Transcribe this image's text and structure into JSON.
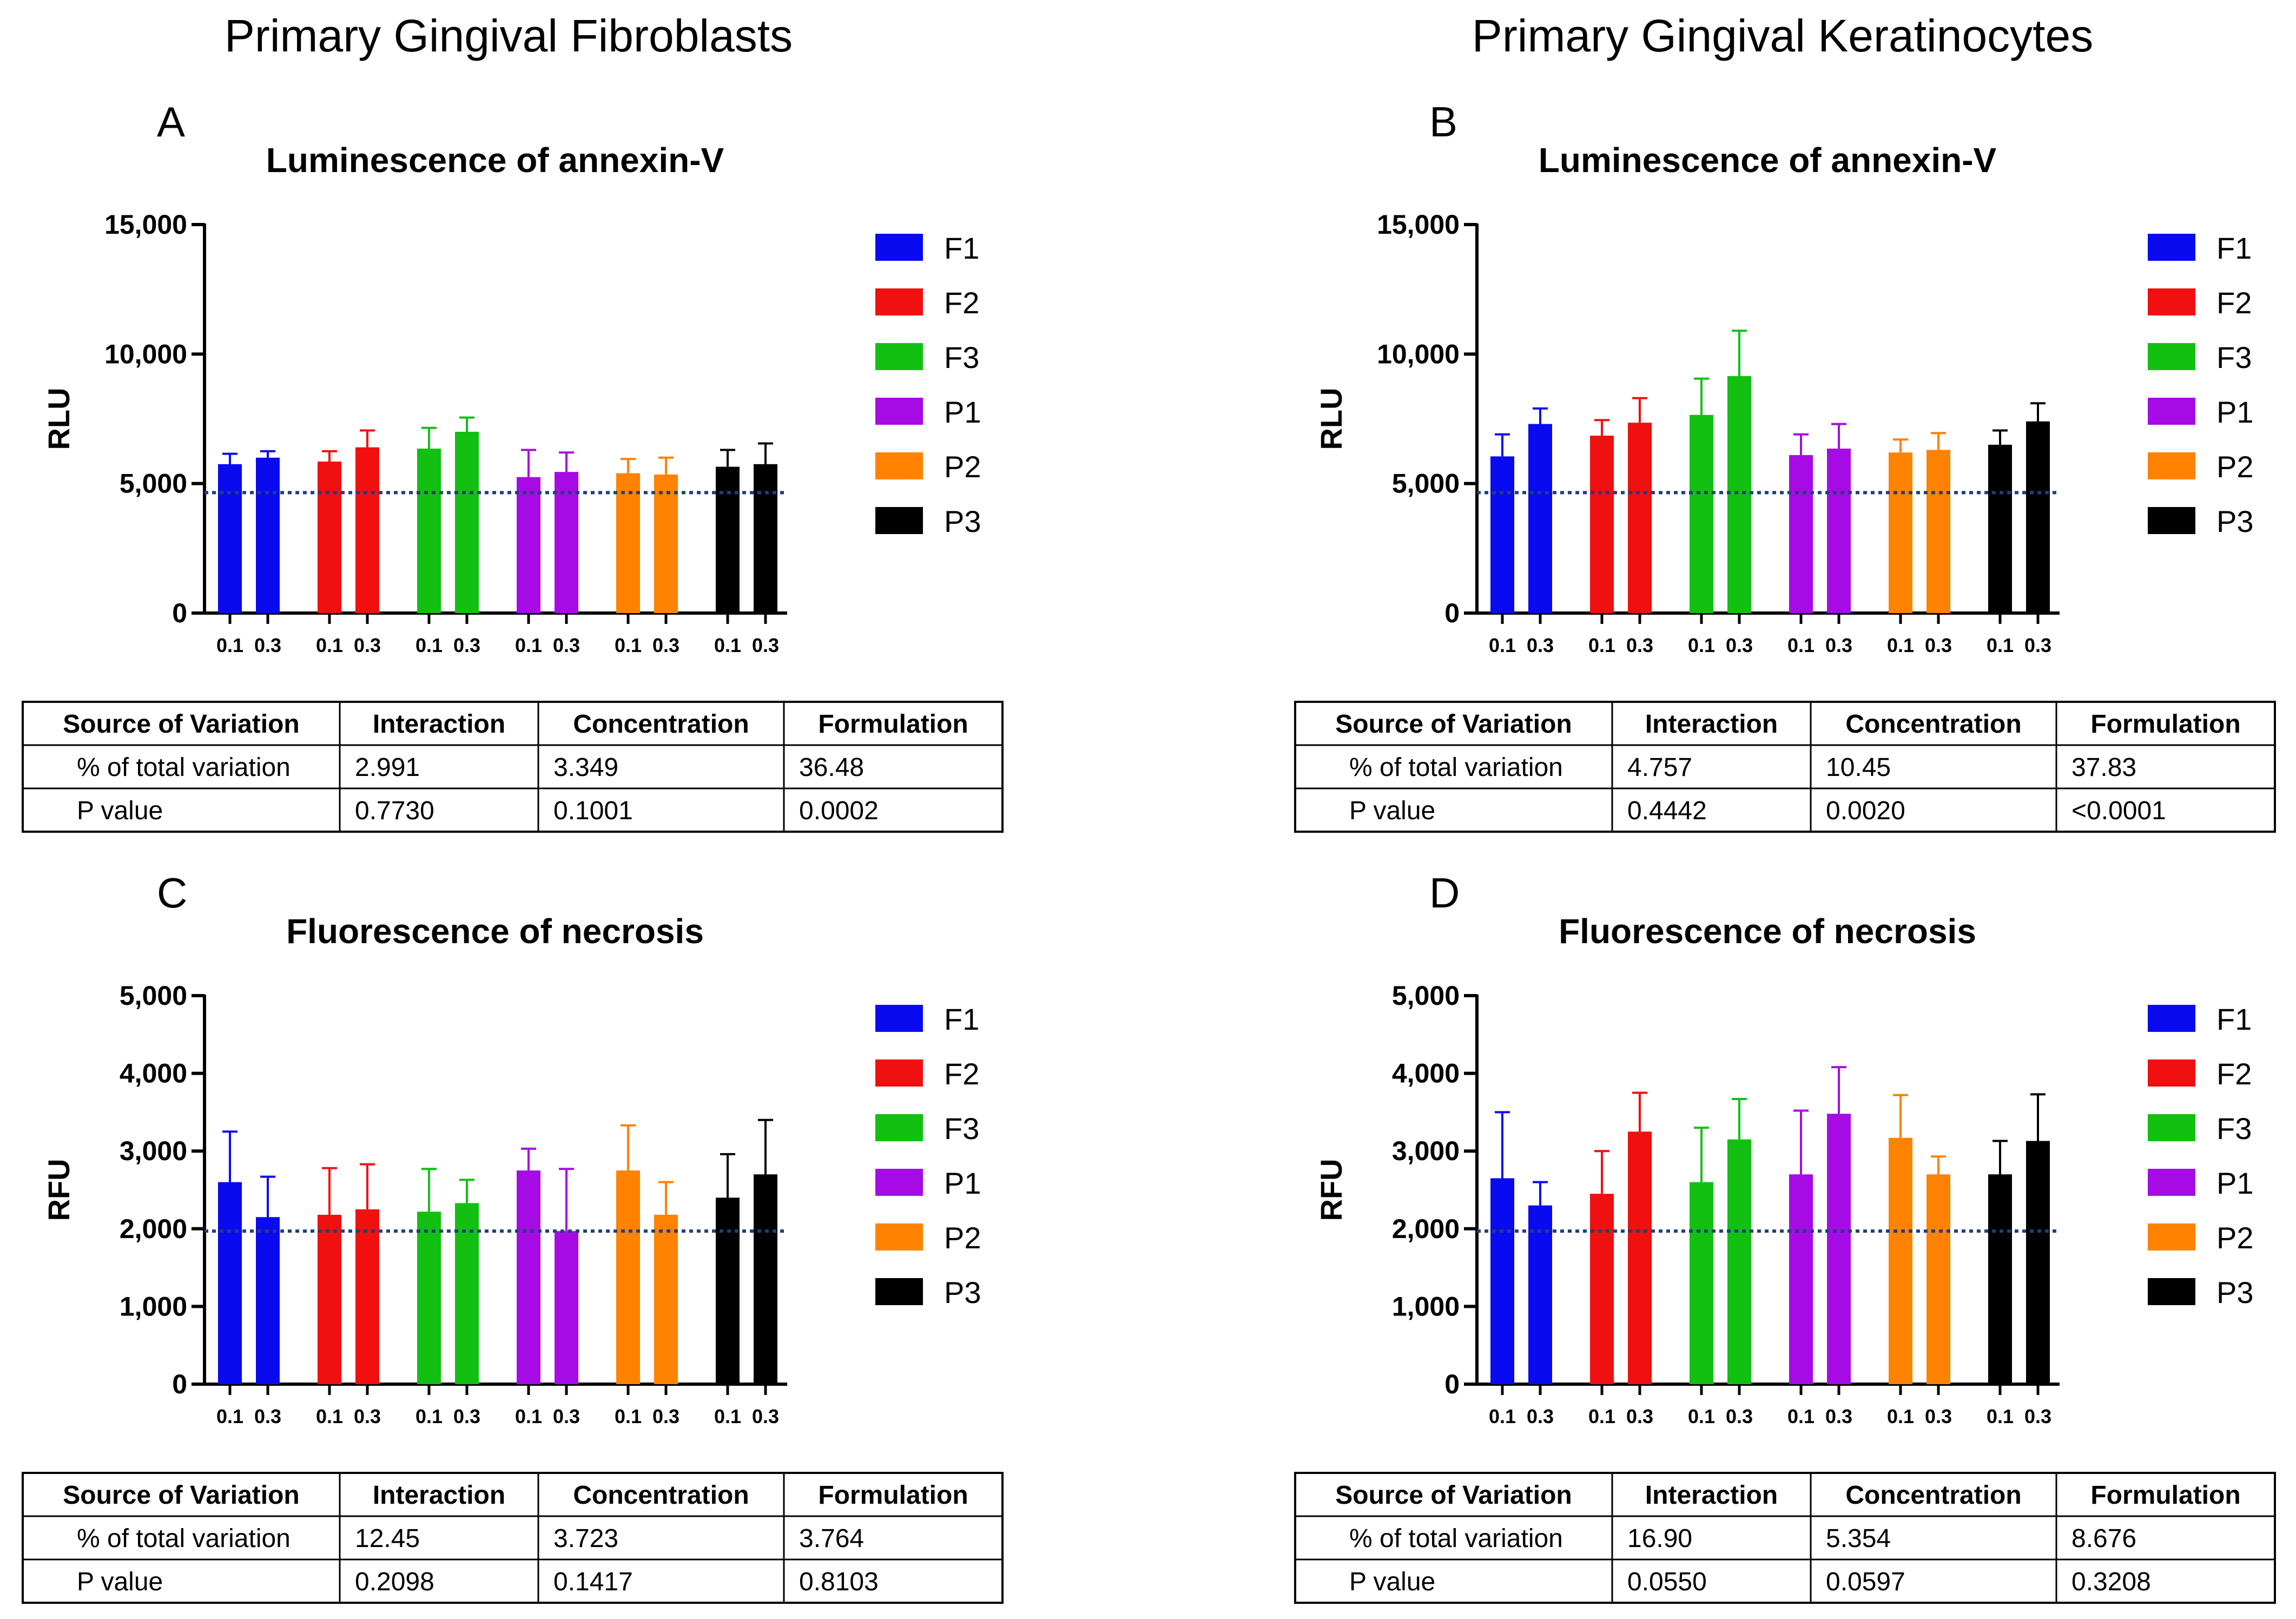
{
  "headings": {
    "left": "Primary Gingival Fibroblasts",
    "right": "Primary Gingival Keratinocytes"
  },
  "colors": {
    "F1": "#0a0af0",
    "F2": "#f01010",
    "F3": "#12c012",
    "P1": "#a60be6",
    "P2": "#ff8200",
    "P3": "#000000",
    "baseline": "#1f3f7a"
  },
  "chart_data": [
    {
      "id": "A",
      "letter": "A",
      "type": "bar",
      "title": "Luminescence of annexin-V",
      "ylabel": "RLU",
      "ylim": [
        0,
        15000
      ],
      "yticks": [
        0,
        5000,
        10000,
        15000
      ],
      "ytick_labels": [
        "0",
        "5,000",
        "10,000",
        "15,000"
      ],
      "baseline": 4650,
      "categories": [
        "0.1",
        "0.3"
      ],
      "series": [
        {
          "name": "F1",
          "values": [
            5750,
            6000
          ],
          "errors": [
            400,
            250
          ]
        },
        {
          "name": "F2",
          "values": [
            5850,
            6400
          ],
          "errors": [
            400,
            650
          ]
        },
        {
          "name": "F3",
          "values": [
            6350,
            7000
          ],
          "errors": [
            800,
            550
          ]
        },
        {
          "name": "P1",
          "values": [
            5250,
            5450
          ],
          "errors": [
            1050,
            750
          ]
        },
        {
          "name": "P2",
          "values": [
            5400,
            5350
          ],
          "errors": [
            550,
            650
          ]
        },
        {
          "name": "P3",
          "values": [
            5650,
            5750
          ],
          "errors": [
            650,
            800
          ]
        }
      ],
      "table": {
        "headers": [
          "Source of Variation",
          "Interaction",
          "Concentration",
          "Formulation"
        ],
        "rows": [
          [
            "% of total variation",
            "2.991",
            "3.349",
            "36.48"
          ],
          [
            "P value",
            "0.7730",
            "0.1001",
            "0.0002"
          ]
        ]
      }
    },
    {
      "id": "B",
      "letter": "B",
      "type": "bar",
      "title": "Luminescence of annexin-V",
      "ylabel": "RLU",
      "ylim": [
        0,
        15000
      ],
      "yticks": [
        0,
        5000,
        10000,
        15000
      ],
      "ytick_labels": [
        "0",
        "5,000",
        "10,000",
        "15,000"
      ],
      "baseline": 4650,
      "categories": [
        "0.1",
        "0.3"
      ],
      "series": [
        {
          "name": "F1",
          "values": [
            6050,
            7300
          ],
          "errors": [
            850,
            600
          ]
        },
        {
          "name": "F2",
          "values": [
            6850,
            7350
          ],
          "errors": [
            600,
            950
          ]
        },
        {
          "name": "F3",
          "values": [
            7650,
            9150
          ],
          "errors": [
            1400,
            1750
          ]
        },
        {
          "name": "P1",
          "values": [
            6100,
            6350
          ],
          "errors": [
            800,
            950
          ]
        },
        {
          "name": "P2",
          "values": [
            6200,
            6300
          ],
          "errors": [
            500,
            650
          ]
        },
        {
          "name": "P3",
          "values": [
            6500,
            7400
          ],
          "errors": [
            550,
            700
          ]
        }
      ],
      "table": {
        "headers": [
          "Source of Variation",
          "Interaction",
          "Concentration",
          "Formulation"
        ],
        "rows": [
          [
            "% of total variation",
            "4.757",
            "10.45",
            "37.83"
          ],
          [
            "P value",
            "0.4442",
            "0.0020",
            "<0.0001"
          ]
        ]
      }
    },
    {
      "id": "C",
      "letter": "C",
      "type": "bar",
      "title": "Fluorescence of necrosis",
      "ylabel": "RFU",
      "ylim": [
        0,
        5000
      ],
      "yticks": [
        0,
        1000,
        2000,
        3000,
        4000,
        5000
      ],
      "ytick_labels": [
        "0",
        "1,000",
        "2,000",
        "3,000",
        "4,000",
        "5,000"
      ],
      "baseline": 1970,
      "categories": [
        "0.1",
        "0.3"
      ],
      "series": [
        {
          "name": "F1",
          "values": [
            2600,
            2150
          ],
          "errors": [
            650,
            520
          ]
        },
        {
          "name": "F2",
          "values": [
            2180,
            2250
          ],
          "errors": [
            600,
            580
          ]
        },
        {
          "name": "F3",
          "values": [
            2220,
            2330
          ],
          "errors": [
            550,
            300
          ]
        },
        {
          "name": "P1",
          "values": [
            2750,
            1970
          ],
          "errors": [
            280,
            800
          ]
        },
        {
          "name": "P2",
          "values": [
            2750,
            2180
          ],
          "errors": [
            580,
            420
          ]
        },
        {
          "name": "P3",
          "values": [
            2400,
            2700
          ],
          "errors": [
            560,
            700
          ]
        }
      ],
      "table": {
        "headers": [
          "Source of Variation",
          "Interaction",
          "Concentration",
          "Formulation"
        ],
        "rows": [
          [
            "% of total variation",
            "12.45",
            "3.723",
            "3.764"
          ],
          [
            "P value",
            "0.2098",
            "0.1417",
            "0.8103"
          ]
        ]
      }
    },
    {
      "id": "D",
      "letter": "D",
      "type": "bar",
      "title": "Fluorescence of necrosis",
      "ylabel": "RFU",
      "ylim": [
        0,
        5000
      ],
      "yticks": [
        0,
        1000,
        2000,
        3000,
        4000,
        5000
      ],
      "ytick_labels": [
        "0",
        "1,000",
        "2,000",
        "3,000",
        "4,000",
        "5,000"
      ],
      "baseline": 1970,
      "categories": [
        "0.1",
        "0.3"
      ],
      "series": [
        {
          "name": "F1",
          "values": [
            2650,
            2300
          ],
          "errors": [
            850,
            300
          ]
        },
        {
          "name": "F2",
          "values": [
            2450,
            3250
          ],
          "errors": [
            550,
            500
          ]
        },
        {
          "name": "F3",
          "values": [
            2600,
            3150
          ],
          "errors": [
            700,
            520
          ]
        },
        {
          "name": "P1",
          "values": [
            2700,
            3480
          ],
          "errors": [
            820,
            600
          ]
        },
        {
          "name": "P2",
          "values": [
            3170,
            2700
          ],
          "errors": [
            550,
            230
          ]
        },
        {
          "name": "P3",
          "values": [
            2700,
            3130
          ],
          "errors": [
            430,
            600
          ]
        }
      ],
      "table": {
        "headers": [
          "Source of Variation",
          "Interaction",
          "Concentration",
          "Formulation"
        ],
        "rows": [
          [
            "% of total variation",
            "16.90",
            "5.354",
            "8.676"
          ],
          [
            "P value",
            "0.0550",
            "0.0597",
            "0.3208"
          ]
        ]
      }
    }
  ]
}
